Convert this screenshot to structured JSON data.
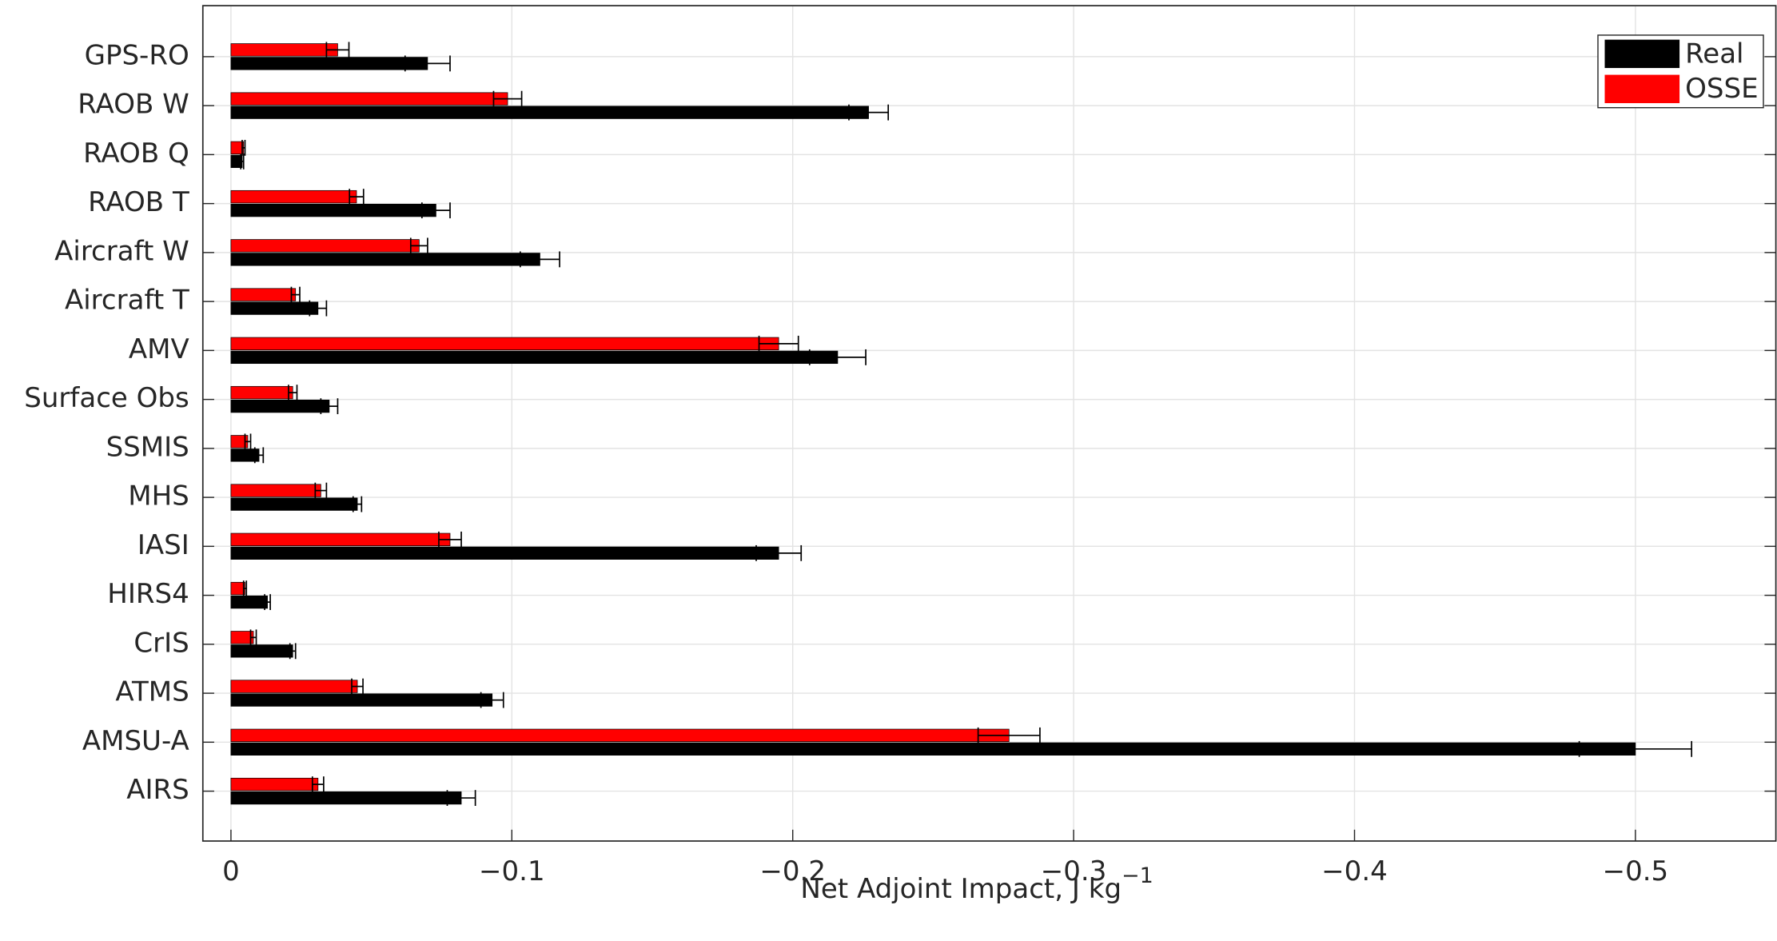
{
  "chart_data": {
    "type": "bar",
    "orientation": "horizontal",
    "x_label": "Net Adjoint Impact, J kg",
    "x_label_sup": "−1",
    "categories": [
      "GPS-RO",
      "RAOB W",
      "RAOB Q",
      "RAOB T",
      "Aircraft W",
      "Aircraft T",
      "AMV",
      "Surface Obs",
      "SSMIS",
      "MHS",
      "IASI",
      "HIRS4",
      "CrIS",
      "ATMS",
      "AMSU-A",
      "AIRS"
    ],
    "series": [
      {
        "name": "Real",
        "color": "#000000",
        "values": [
          -0.07,
          -0.227,
          -0.004,
          -0.073,
          -0.11,
          -0.031,
          -0.216,
          -0.035,
          -0.01,
          -0.045,
          -0.195,
          -0.013,
          -0.022,
          -0.093,
          -0.5,
          -0.082
        ],
        "errors": [
          0.008,
          0.007,
          0.0005,
          0.005,
          0.007,
          0.003,
          0.01,
          0.003,
          0.0015,
          0.0015,
          0.008,
          0.001,
          0.001,
          0.004,
          0.02,
          0.005
        ]
      },
      {
        "name": "OSSE",
        "color": "#ff0000",
        "values": [
          -0.038,
          -0.0985,
          -0.0045,
          -0.0447,
          -0.067,
          -0.023,
          -0.195,
          -0.022,
          -0.006,
          -0.032,
          -0.078,
          -0.005,
          -0.008,
          -0.045,
          -0.277,
          -0.031
        ],
        "errors": [
          0.004,
          0.005,
          0.0005,
          0.0025,
          0.003,
          0.0015,
          0.007,
          0.0015,
          0.001,
          0.002,
          0.004,
          0.0005,
          0.001,
          0.002,
          0.011,
          0.002
        ]
      }
    ],
    "xlim": [
      0.01,
      -0.55
    ],
    "xticks": [
      0,
      {
        "value": -0.1,
        "label": "−0.1"
      },
      {
        "value": -0.2,
        "label": "−0.2"
      },
      {
        "value": -0.3,
        "label": "−0.3"
      },
      {
        "value": -0.4,
        "label": "−0.4"
      },
      {
        "value": -0.5,
        "label": "−0.5"
      }
    ],
    "grid": true,
    "legend": "top-right"
  }
}
